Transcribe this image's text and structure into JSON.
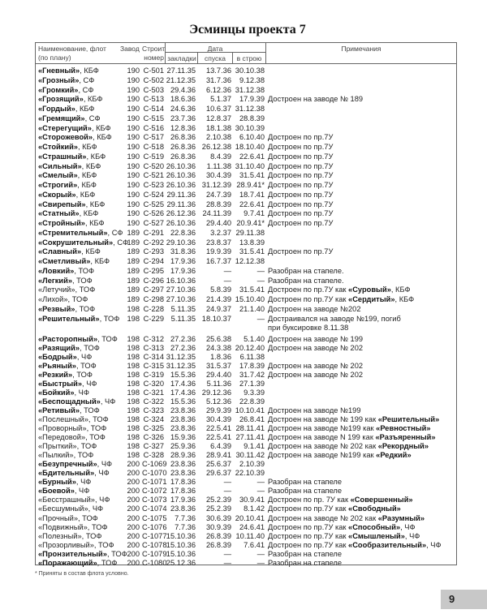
{
  "title": "Эсминцы проекта 7",
  "header": {
    "name_line1": "Наименование, флот",
    "name_line2": "(по плану)",
    "plant": "Завод",
    "num_line1": "Строит.",
    "num_line2": "номер",
    "date": "Дата",
    "laid": "закладки",
    "launched": "спуска",
    "commissioned": "в строю",
    "notes": "Примечания"
  },
  "rows": [
    {
      "n": "«Гневный»",
      "b": 1,
      "f": ", КБФ",
      "p": "190",
      "s": "С-501",
      "l": "27.11.35",
      "d": "13.7.36",
      "c": "30.10.38",
      "n1": "",
      "nb": "",
      "n2": ""
    },
    {
      "n": "«Грозный»",
      "b": 1,
      "f": ", СФ",
      "p": "190",
      "s": "С-502",
      "l": "21.12.35",
      "d": "31.7.36",
      "c": "9.12.38",
      "n1": "",
      "nb": "",
      "n2": ""
    },
    {
      "n": "«Громкий»",
      "b": 1,
      "f": ", СФ",
      "p": "190",
      "s": "С-503",
      "l": "29.4.36",
      "d": "6.12.36",
      "c": "31.12.38",
      "n1": "",
      "nb": "",
      "n2": ""
    },
    {
      "n": "«Грозящий»",
      "b": 1,
      "f": ", КБФ",
      "p": "190",
      "s": "С-513",
      "l": "18.6.36",
      "d": "5.1.37",
      "c": "17.9.39",
      "n1": "Достроен на заводе № 189",
      "nb": "",
      "n2": ""
    },
    {
      "n": "«Гордый»",
      "b": 1,
      "f": ", КБФ",
      "p": "190",
      "s": "С-514",
      "l": "24.6.36",
      "d": "10.6.37",
      "c": "31.12.38",
      "n1": "",
      "nb": "",
      "n2": ""
    },
    {
      "n": "«Гремящий»",
      "b": 1,
      "f": ", СФ",
      "p": "190",
      "s": "С-515",
      "l": "23.7.36",
      "d": "12.8.37",
      "c": "28.8.39",
      "n1": "",
      "nb": "",
      "n2": ""
    },
    {
      "n": "«Стерегущий»",
      "b": 1,
      "f": ", КБФ",
      "p": "190",
      "s": "С-516",
      "l": "12.8.36",
      "d": "18.1.38",
      "c": "30.10.39",
      "n1": "",
      "nb": "",
      "n2": ""
    },
    {
      "n": "«Сторожевой»",
      "b": 1,
      "f": ", КБФ",
      "p": "190",
      "s": "С-517",
      "l": "26.8.36",
      "d": "2.10.38",
      "c": "6.10.40",
      "n1": "Достроен по пр.7У",
      "nb": "",
      "n2": ""
    },
    {
      "n": "«Стойкий»",
      "b": 1,
      "f": ", КБФ",
      "p": "190",
      "s": "С-518",
      "l": "26.8.36",
      "d": "26.12.38",
      "c": "18.10.40",
      "n1": "Достроен по пр.7У",
      "nb": "",
      "n2": ""
    },
    {
      "n": "«Страшный»",
      "b": 1,
      "f": ", КБФ",
      "p": "190",
      "s": "С-519",
      "l": "26.8.36",
      "d": "8.4.39",
      "c": "22.6.41",
      "n1": "Достроен по пр.7У",
      "nb": "",
      "n2": ""
    },
    {
      "n": "«Сильный»",
      "b": 1,
      "f": ", КБФ",
      "p": "190",
      "s": "С-520",
      "l": "26.10.36",
      "d": "1.11.38",
      "c": "31.10.40",
      "n1": "Достроен по пр.7У",
      "nb": "",
      "n2": ""
    },
    {
      "n": "«Смелый»",
      "b": 1,
      "f": ", КБФ",
      "p": "190",
      "s": "С-521",
      "l": "26.10.36",
      "d": "30.4.39",
      "c": "31.5.41",
      "n1": "Достроен по пр.7У",
      "nb": "",
      "n2": ""
    },
    {
      "n": "«Строгий»",
      "b": 1,
      "f": ", КБФ",
      "p": "190",
      "s": "С-523",
      "l": "26.10.36",
      "d": "31.12.39",
      "c": "28.9.41*",
      "n1": "Достроен по пр.7У",
      "nb": "",
      "n2": ""
    },
    {
      "n": "«Скорый»",
      "b": 1,
      "f": ", КБФ",
      "p": "190",
      "s": "С-524",
      "l": "29.11.36",
      "d": "24.7.39",
      "c": "18.7.41",
      "n1": "Достроен по пр.7У",
      "nb": "",
      "n2": ""
    },
    {
      "n": "«Свирепый»",
      "b": 1,
      "f": ", КБФ",
      "p": "190",
      "s": "С-525",
      "l": "29.11.36",
      "d": "28.8.39",
      "c": "22.6.41",
      "n1": "Достроен по пр.7У",
      "nb": "",
      "n2": ""
    },
    {
      "n": "«Статный»",
      "b": 1,
      "f": ", КБФ",
      "p": "190",
      "s": "С-526",
      "l": "26.12.36",
      "d": "24.11.39",
      "c": "9.7.41",
      "n1": "Достроен по пр.7У",
      "nb": "",
      "n2": ""
    },
    {
      "n": "«Стройный»",
      "b": 1,
      "f": ", КБФ",
      "p": "190",
      "s": "С-527",
      "l": "26.10.36",
      "d": "29.4.40",
      "c": "20.9.41*",
      "n1": "Достроен по пр.7У",
      "nb": "",
      "n2": ""
    },
    {
      "n": "«Стремительный»",
      "b": 1,
      "f": ", СФ",
      "p": "189",
      "s": "С-291",
      "l": "22.8.36",
      "d": "3.2.37",
      "c": "29.11.38",
      "n1": "",
      "nb": "",
      "n2": ""
    },
    {
      "n": "«Сокрушительный»",
      "b": 1,
      "f": ", СФ",
      "p": "189",
      "s": "С-292",
      "l": "29.10.36",
      "d": "23.8.37",
      "c": "13.8.39",
      "n1": "",
      "nb": "",
      "n2": ""
    },
    {
      "n": "«Славный»",
      "b": 1,
      "f": ", КБФ",
      "p": "189",
      "s": "С-293",
      "l": "31.8.36",
      "d": "19.9.39",
      "c": "31.5.41",
      "n1": "Достроен по пр.7У",
      "nb": "",
      "n2": ""
    },
    {
      "n": "«Сметливый»",
      "b": 1,
      "f": ", КБФ",
      "p": "189",
      "s": "С-294",
      "l": "17.9.36",
      "d": "16.7.37",
      "c": "12.12.38",
      "n1": "",
      "nb": "",
      "n2": ""
    },
    {
      "n": "«Ловкий»",
      "b": 1,
      "f": ", ТОФ",
      "p": "189",
      "s": "С-295",
      "l": "17.9.36",
      "d": "—",
      "c": "—",
      "n1": "Разобран на стапеле.",
      "nb": "",
      "n2": ""
    },
    {
      "n": "«Легкий»",
      "b": 1,
      "f": ", ТОФ",
      "p": "189",
      "s": "С-296",
      "l": "16.10.36",
      "d": "—",
      "c": "—",
      "n1": "Разобран на стапеле.",
      "nb": "",
      "n2": ""
    },
    {
      "n": "«Летучий»",
      "b": 0,
      "f": ", ТОФ",
      "p": "189",
      "s": "С-297",
      "l": "27.10.36",
      "d": "5.8.39",
      "c": "31.5.41",
      "n1": "Достроен по пр.7У как ",
      "nb": "«Суровый»",
      "n2": ", КБФ"
    },
    {
      "n": "«Лихой»",
      "b": 0,
      "f": ", ТОФ",
      "p": "189",
      "s": "С-298",
      "l": "27.10.36",
      "d": "21.4.39",
      "c": "15.10.40",
      "n1": "Достроен по пр.7У как ",
      "nb": "«Сердитый»",
      "n2": ", КБФ"
    },
    {
      "n": "«Резвый»",
      "b": 1,
      "f": ", ТОФ",
      "p": "198",
      "s": "С-228",
      "l": "5.11.35",
      "d": "24.9.37",
      "c": "21.1.40",
      "n1": "Достроен на заводе №202",
      "nb": "",
      "n2": ""
    },
    {
      "n": "«Решительный»",
      "b": 1,
      "f": ", ТОФ",
      "p": "198",
      "s": "С-229",
      "l": "5.11.35",
      "d": "18.10.37",
      "c": "—",
      "n1": "Достраивался на заводе №199, погиб",
      "nb": "",
      "n2": "",
      "n3": "при буксировке 8.11.38"
    },
    {
      "n": "«Расторопный»",
      "b": 1,
      "f": ", ТОФ",
      "p": "198",
      "s": "С-312",
      "l": "27.2.36",
      "d": "25.6.38",
      "c": "5.1.40",
      "n1": "Достроен на заводе № 199",
      "nb": "",
      "n2": ""
    },
    {
      "n": "«Разящий»",
      "b": 1,
      "f": ", ТОФ",
      "p": "198",
      "s": "С-313",
      "l": "27.2.36",
      "d": "24.3.38",
      "c": "20.12.40",
      "n1": "Достроен на заводе № 202",
      "nb": "",
      "n2": ""
    },
    {
      "n": "«Бодрый»",
      "b": 1,
      "f": ", ЧФ",
      "p": "198",
      "s": "С-314",
      "l": "31.12.35",
      "d": "1.8.36",
      "c": "6.11.38",
      "n1": "",
      "nb": "",
      "n2": ""
    },
    {
      "n": "«Рьяный»",
      "b": 1,
      "f": ", ТОФ",
      "p": "198",
      "s": "С-315",
      "l": "31.12.35",
      "d": "31.5.37",
      "c": "17.8.39",
      "n1": "Достроен на заводе № 202",
      "nb": "",
      "n2": ""
    },
    {
      "n": "«Резкий»",
      "b": 1,
      "f": ", ТОФ",
      "p": "198",
      "s": "С-319",
      "l": "15.5.36",
      "d": "29.4.40",
      "c": "31.7.42",
      "n1": "Достроен на заводе № 202",
      "nb": "",
      "n2": ""
    },
    {
      "n": "«Быстрый»",
      "b": 1,
      "f": ", ЧФ",
      "p": "198",
      "s": "С-320",
      "l": "17.4.36",
      "d": "5.11.36",
      "c": "27.1.39",
      "n1": "",
      "nb": "",
      "n2": ""
    },
    {
      "n": "«Бойкий»",
      "b": 1,
      "f": ", ЧФ",
      "p": "198",
      "s": "С-321",
      "l": "17.4.36",
      "d": "29.12.36",
      "c": "9.3.39",
      "n1": "",
      "nb": "",
      "n2": ""
    },
    {
      "n": "«Беспощадный»",
      "b": 1,
      "f": ", ЧФ",
      "p": "198",
      "s": "С-322",
      "l": "15.5.36",
      "d": "5.12.36",
      "c": "22.8.39",
      "n1": "",
      "nb": "",
      "n2": ""
    },
    {
      "n": "«Ретивый»",
      "b": 1,
      "f": ", ТОФ",
      "p": "198",
      "s": "С-323",
      "l": "23.8.36",
      "d": "29.9.39",
      "c": "10.10.41",
      "n1": "Достроен на заводе №199",
      "nb": "",
      "n2": ""
    },
    {
      "n": "«Послешный»",
      "b": 0,
      "f": ", ТОФ",
      "p": "198",
      "s": "С-324",
      "l": "23.8.36",
      "d": "30.4.39",
      "c": "26.8.41",
      "n1": "Достроен на заводе № 199 как ",
      "nb": "«Решительный»",
      "n2": ""
    },
    {
      "n": "«Проворный»",
      "b": 0,
      "f": ", ТОФ",
      "p": "198",
      "s": "С-325",
      "l": "23.8.36",
      "d": "22.5.41",
      "c": "28.11.41",
      "n1": "Достроен на заводе №199 как ",
      "nb": "«Ревностный»",
      "n2": ""
    },
    {
      "n": "«Передовой»",
      "b": 0,
      "f": ", ТОФ",
      "p": "198",
      "s": "С-326",
      "l": "15.9.36",
      "d": "22.5.41",
      "c": "27.11.41",
      "n1": "Достроен на заводе N 199 как ",
      "nb": "«Разъяренный»",
      "n2": ""
    },
    {
      "n": "«Прыткий»",
      "b": 0,
      "f": ", ТОФ",
      "p": "198",
      "s": "С-327",
      "l": "25.9.36",
      "d": "6.4.39",
      "c": "9.1.41",
      "n1": "Достроен на заводе № 202 как ",
      "nb": "«Рекордный»",
      "n2": ""
    },
    {
      "n": "«Пылкий»",
      "b": 0,
      "f": ", ТОФ",
      "p": "198",
      "s": "С-328",
      "l": "28.9.36",
      "d": "28.9.41",
      "c": "30.11.42",
      "n1": "Достроен на заводе №199 как ",
      "nb": "«Редкий»",
      "n2": ""
    },
    {
      "n": "«Безупречный»",
      "b": 1,
      "f": ", ЧФ",
      "p": "200",
      "s": "С-1069",
      "l": "23.8.36",
      "d": "25.6.37",
      "c": "2.10.39",
      "n1": "",
      "nb": "",
      "n2": ""
    },
    {
      "n": "«Бдительный»",
      "b": 1,
      "f": ", ЧФ",
      "p": "200",
      "s": "С-1070",
      "l": "23.8.36",
      "d": "29.6.37",
      "c": "22.10.39",
      "n1": "",
      "nb": "",
      "n2": ""
    },
    {
      "n": "«Бурный»",
      "b": 1,
      "f": ", ЧФ",
      "p": "200",
      "s": "С-1071",
      "l": "17.8.36",
      "d": "—",
      "c": "—",
      "n1": "Разобран на стапеле",
      "nb": "",
      "n2": ""
    },
    {
      "n": "«Боевой»",
      "b": 1,
      "f": ", ЧФ",
      "p": "200",
      "s": "С-1072",
      "l": "17.8.36",
      "d": "—",
      "c": "—",
      "n1": "Разобран на стапеле",
      "nb": "",
      "n2": ""
    },
    {
      "n": "«Бесстрашный»",
      "b": 0,
      "f": ", ЧФ",
      "p": "200",
      "s": "С-1073",
      "l": "17.9.36",
      "d": "25.2.39",
      "c": "30.9.41",
      "n1": "Достроен по пр. 7У как ",
      "nb": "«Совершенный»",
      "n2": ""
    },
    {
      "n": "«Бесшумный»",
      "b": 0,
      "f": ", ЧФ",
      "p": "200",
      "s": "С-1074",
      "l": "23.8.36",
      "d": "25.2.39",
      "c": "8.1.42",
      "n1": "Достроен по пр.7У как ",
      "nb": "«Свободный»",
      "n2": ""
    },
    {
      "n": "«Прочный»",
      "b": 0,
      "f": ", ТОФ",
      "p": "200",
      "s": "С-1075",
      "l": "7.7.36",
      "d": "30.6.39",
      "c": "20.10.41",
      "n1": "Достроен на заводе № 202 как ",
      "nb": "«Разумный»",
      "n2": ""
    },
    {
      "n": "«Подвижный»",
      "b": 0,
      "f": ", ТОФ",
      "p": "200",
      "s": "С-1076",
      "l": "7.7.36",
      "d": "30.9.39",
      "c": "24.6.41",
      "n1": "Достроен по пр.7У как ",
      "nb": "«Способный»",
      "n2": ", ЧФ"
    },
    {
      "n": "«Полезный»",
      "b": 0,
      "f": ", ТОФ",
      "p": "200",
      "s": "С-1077",
      "l": "15.10.36",
      "d": "26.8.39",
      "c": "10.11.40",
      "n1": "Достроен по пр.7У как ",
      "nb": "«Смышленый»",
      "n2": ", ЧФ"
    },
    {
      "n": "«Прозорливый»",
      "b": 0,
      "f": ", ТОФ",
      "p": "200",
      "s": "С-1078",
      "l": "15.10.36",
      "d": "26.8.39",
      "c": "7.6.41",
      "n1": "Достроен по пр.7У как ",
      "nb": "«Сообразительный»",
      "n2": ", ЧФ"
    },
    {
      "n": "«Пронзительный»",
      "b": 1,
      "f": ", ТОФ",
      "p": "200",
      "s": "С-1079",
      "l": "15.10.36",
      "d": "—",
      "c": "—",
      "n1": "Разобран на стапеле",
      "nb": "",
      "n2": ""
    },
    {
      "n": "«Поражающий»",
      "b": 1,
      "f": ", ТОФ",
      "p": "200",
      "s": "С-1080",
      "l": "25.12.36",
      "d": "—",
      "c": "—",
      "n1": "Разобран на стапеле",
      "nb": "",
      "n2": ""
    }
  ],
  "footnote": "* Приняты в состав флота условно.",
  "page_number": "9"
}
